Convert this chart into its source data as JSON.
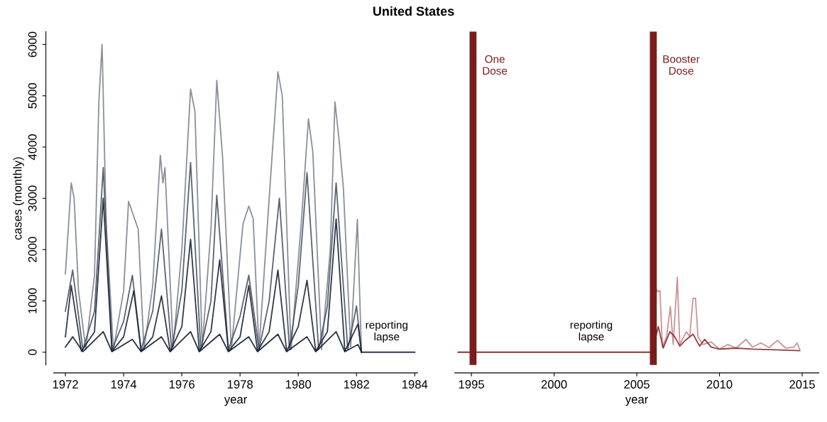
{
  "chart_data": [
    {
      "type": "line",
      "title": "United States",
      "xlabel": "year",
      "ylabel": "cases (monthly)",
      "xlim": [
        1971.6,
        1984.1
      ],
      "xticks": [
        1972,
        1974,
        1976,
        1978,
        1980,
        1982,
        1984
      ],
      "ylim": [
        -250,
        6250
      ],
      "yticks": [
        0,
        1000,
        2000,
        3000,
        4000,
        5000,
        6000
      ],
      "grid": false,
      "annotations": [
        "reporting\nlapse"
      ],
      "series": [
        {
          "color": "#7d838f",
          "x": [
            1972.0,
            1972.2,
            1972.3,
            1972.45,
            1972.7,
            1973.0,
            1973.15,
            1973.26,
            1973.4,
            1973.65,
            1974.0,
            1974.17,
            1974.5,
            1974.7,
            1975.0,
            1975.26,
            1975.35,
            1975.42,
            1975.7,
            1976.0,
            1976.3,
            1976.45,
            1976.7,
            1977.0,
            1977.2,
            1977.4,
            1977.7,
            1978.1,
            1978.3,
            1978.45,
            1978.65,
            1979.0,
            1979.3,
            1979.45,
            1979.75,
            1980.1,
            1980.35,
            1980.5,
            1980.8,
            1981.1,
            1981.26,
            1981.4,
            1981.55,
            1981.8,
            1982.03,
            1982.17
          ],
          "values": [
            1530,
            3300,
            3000,
            1200,
            50,
            1500,
            4900,
            6000,
            2500,
            50,
            1200,
            2940,
            2400,
            50,
            1300,
            3840,
            3300,
            3600,
            100,
            2000,
            5130,
            4700,
            100,
            2400,
            5300,
            3800,
            50,
            2500,
            2850,
            2600,
            50,
            3000,
            5470,
            5000,
            50,
            2500,
            4550,
            3900,
            50,
            2000,
            4880,
            4150,
            3200,
            100,
            2590,
            0
          ]
        },
        {
          "color": "#4a5264",
          "x": [
            1972.0,
            1972.25,
            1972.6,
            1973.0,
            1973.3,
            1973.6,
            1974.0,
            1974.3,
            1974.6,
            1975.0,
            1975.3,
            1975.65,
            1976.0,
            1976.3,
            1976.65,
            1977.0,
            1977.2,
            1977.6,
            1978.0,
            1978.3,
            1978.65,
            1979.0,
            1979.35,
            1979.7,
            1980.0,
            1980.3,
            1980.7,
            1981.0,
            1981.3,
            1981.7,
            1982.0,
            1982.17
          ],
          "values": [
            800,
            1600,
            50,
            800,
            3600,
            50,
            600,
            1500,
            50,
            800,
            2400,
            50,
            1200,
            3700,
            50,
            1000,
            3060,
            50,
            700,
            1500,
            50,
            1000,
            3000,
            50,
            1300,
            3500,
            50,
            900,
            3300,
            50,
            900,
            0
          ]
        },
        {
          "color": "#1b2438",
          "x": [
            1972.0,
            1972.2,
            1972.55,
            1973.0,
            1973.3,
            1973.6,
            1974.0,
            1974.35,
            1974.6,
            1975.0,
            1975.3,
            1975.6,
            1976.0,
            1976.3,
            1976.6,
            1977.0,
            1977.3,
            1977.6,
            1978.0,
            1978.3,
            1978.6,
            1979.0,
            1979.3,
            1979.6,
            1980.0,
            1980.3,
            1980.6,
            1981.0,
            1981.3,
            1981.6,
            1982.05,
            1982.17,
            1984.0
          ],
          "values": [
            300,
            1300,
            20,
            400,
            3000,
            20,
            300,
            1200,
            20,
            300,
            1100,
            20,
            500,
            2200,
            20,
            400,
            1800,
            20,
            300,
            1300,
            20,
            400,
            1600,
            20,
            500,
            1400,
            20,
            400,
            2600,
            20,
            550,
            0,
            0
          ]
        },
        {
          "color": "#111a2c",
          "x": [
            1972.0,
            1972.25,
            1972.6,
            1973.3,
            1973.6,
            1974.3,
            1974.6,
            1975.3,
            1975.6,
            1976.3,
            1976.6,
            1977.3,
            1977.6,
            1978.3,
            1978.6,
            1979.3,
            1979.6,
            1980.3,
            1980.6,
            1981.3,
            1981.6,
            1982.05,
            1982.17
          ],
          "values": [
            100,
            300,
            10,
            400,
            10,
            250,
            10,
            300,
            10,
            400,
            10,
            350,
            10,
            300,
            10,
            350,
            10,
            300,
            10,
            400,
            10,
            150,
            0
          ]
        }
      ]
    },
    {
      "type": "line",
      "xlabel": "year",
      "xlim": [
        1994,
        2016
      ],
      "xticks": [
        1995,
        2000,
        2005,
        2010,
        2015
      ],
      "ylim": [
        -250,
        6250
      ],
      "tick_labels": "x",
      "grid": false,
      "annotations": [
        "reporting\nlapse"
      ],
      "ref_lines": [
        {
          "axis": "x",
          "value": 1995.1,
          "label": "One\nDose",
          "color": "#7b1c1c"
        },
        {
          "axis": "x",
          "value": 2006.0,
          "label": "Booster\nDose",
          "color": "#7b1c1c"
        }
      ],
      "series": [
        {
          "color": "#7b1c1c",
          "x": [
            1994.2,
            2006.0
          ],
          "values": [
            0,
            0
          ]
        },
        {
          "color": "#c48888",
          "x": [
            2006.1,
            2006.25,
            2006.4,
            2006.55,
            2006.8,
            2007.03,
            2007.2,
            2007.45,
            2007.6,
            2008.0,
            2008.2,
            2008.4,
            2008.55,
            2008.7,
            2009.0,
            2009.5,
            2010.0,
            2010.5,
            2011.0,
            2011.6,
            2012.0,
            2012.5,
            2013.0,
            2013.5,
            2014.0,
            2014.5,
            2014.7,
            2014.85
          ],
          "values": [
            1300,
            1180,
            1200,
            100,
            300,
            890,
            150,
            1460,
            150,
            400,
            300,
            1050,
            1050,
            300,
            150,
            200,
            60,
            150,
            80,
            250,
            100,
            180,
            90,
            230,
            80,
            100,
            180,
            50
          ]
        },
        {
          "color": "#8a2a2a",
          "x": [
            2006.0,
            2006.3,
            2006.6,
            2007.0,
            2007.3,
            2007.6,
            2008.0,
            2008.4,
            2008.8,
            2009.1,
            2009.5,
            2010.0,
            2011.0,
            2012.0,
            2013.0,
            2014.0,
            2014.85
          ],
          "values": [
            100,
            500,
            80,
            400,
            300,
            120,
            250,
            350,
            120,
            250,
            100,
            60,
            80,
            60,
            50,
            40,
            30
          ]
        }
      ]
    }
  ]
}
